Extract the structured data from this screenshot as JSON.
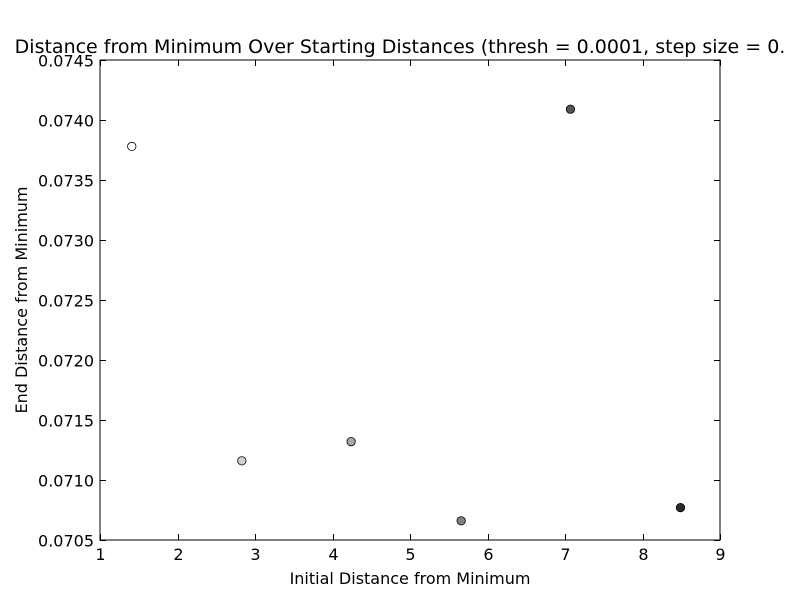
{
  "chart_data": {
    "type": "scatter",
    "title": "Distance from Minimum Over Starting Distances (thresh = 0.0001, step size = 0.",
    "xlabel": "Initial Distance from Minimum",
    "ylabel": "End Distance from Minimum",
    "xlim": [
      1,
      9
    ],
    "ylim": [
      0.0705,
      0.0745
    ],
    "xticks": [
      1,
      2,
      3,
      4,
      5,
      6,
      7,
      8,
      9
    ],
    "xtick_labels": [
      "1",
      "2",
      "3",
      "4",
      "5",
      "6",
      "7",
      "8",
      "9"
    ],
    "yticks": [
      0.0705,
      0.071,
      0.0715,
      0.072,
      0.0725,
      0.073,
      0.0735,
      0.074,
      0.0745
    ],
    "ytick_labels": [
      "0.0705",
      "0.0710",
      "0.0715",
      "0.0720",
      "0.0725",
      "0.0730",
      "0.0735",
      "0.0740",
      "0.0745"
    ],
    "grid": false,
    "legend": "none",
    "points": [
      {
        "x": 1.41,
        "y": 0.07378,
        "color": "#ffffff"
      },
      {
        "x": 2.83,
        "y": 0.07116,
        "color": "#d0d0d0"
      },
      {
        "x": 4.24,
        "y": 0.07132,
        "color": "#a8a8a8"
      },
      {
        "x": 5.66,
        "y": 0.07066,
        "color": "#808080"
      },
      {
        "x": 7.07,
        "y": 0.07409,
        "color": "#555555"
      },
      {
        "x": 8.49,
        "y": 0.07077,
        "color": "#2a2a2a"
      }
    ]
  }
}
